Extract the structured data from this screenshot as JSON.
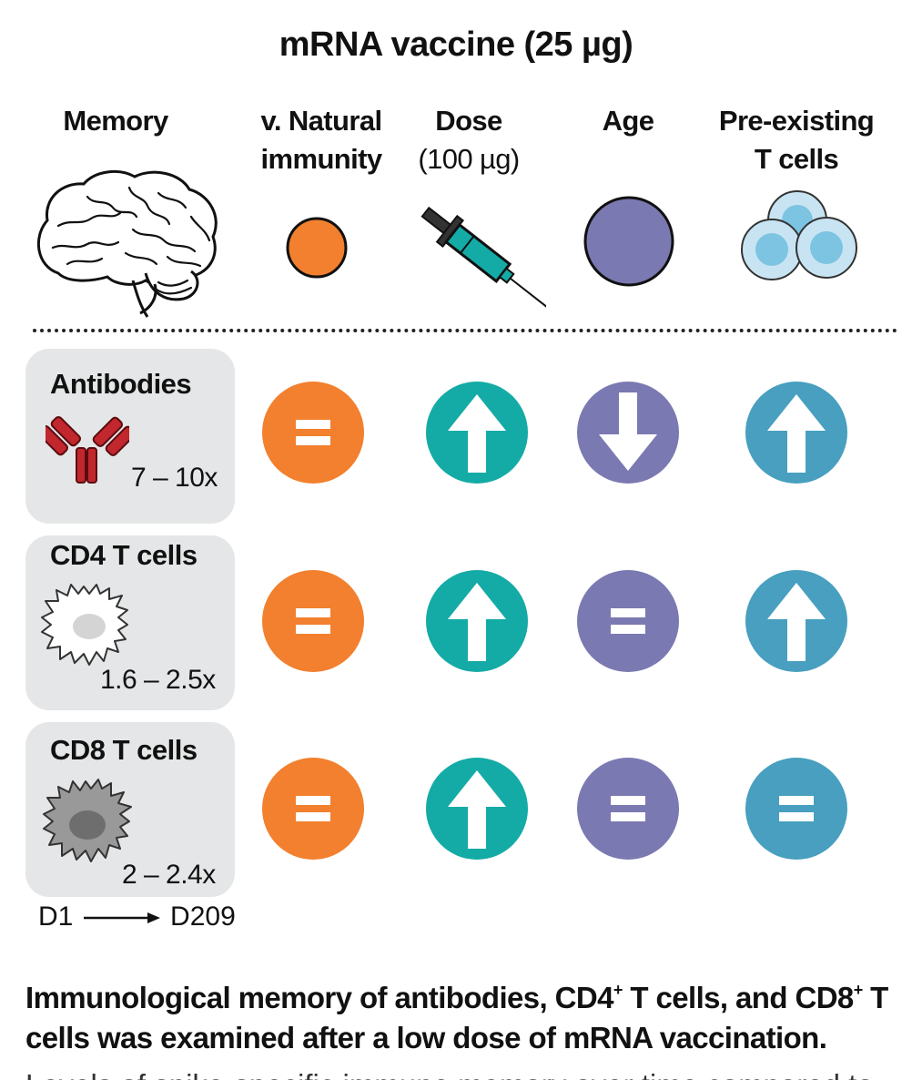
{
  "title": "mRNA vaccine (25 µg)",
  "columns": {
    "memory": "Memory",
    "natural_line1": "v. Natural",
    "natural_line2": "immunity",
    "dose_line1": "Dose",
    "dose_line2": "(100 µg)",
    "age": "Age",
    "preexisting_line1": "Pre-existing",
    "preexisting_line2": "T cells"
  },
  "rows": [
    {
      "label": "Antibodies",
      "fold_change": "7 – 10x",
      "natural": "equal",
      "dose": "up",
      "age": "down",
      "preexisting": "up"
    },
    {
      "label": "CD4 T cells",
      "fold_change": "1.6 – 2.5x",
      "natural": "equal",
      "dose": "up",
      "age": "equal",
      "preexisting": "up"
    },
    {
      "label": "CD8 T cells",
      "fold_change": "2 – 2.4x",
      "natural": "equal",
      "dose": "up",
      "age": "equal",
      "preexisting": "equal"
    }
  ],
  "timeline": {
    "start": "D1",
    "end": "D209"
  },
  "caption": {
    "part1": "Immunological memory of antibodies, CD4",
    "sup1": "+",
    "part2": " T cells, and CD8",
    "sup2": "+",
    "part3": " T cells was examined after a low dose of mRNA vaccination."
  },
  "cutoff_text": "Levels of spike-specific immune memory over time compared to",
  "colors": {
    "natural": "#f2802e",
    "dose": "#14aba6",
    "age": "#7b79b1",
    "preexisting": "#489fbf",
    "antibody": "#c1272d",
    "card_bg": "#e5e6e7"
  },
  "icons": {
    "memory": "brain-icon",
    "natural": "orange-dot-icon",
    "dose": "syringe-icon",
    "age": "purple-dot-icon",
    "preexisting": "t-cell-cluster-icon",
    "antibodies": "antibody-icon",
    "cd4": "cd4-cell-icon",
    "cd8": "cd8-cell-icon"
  }
}
